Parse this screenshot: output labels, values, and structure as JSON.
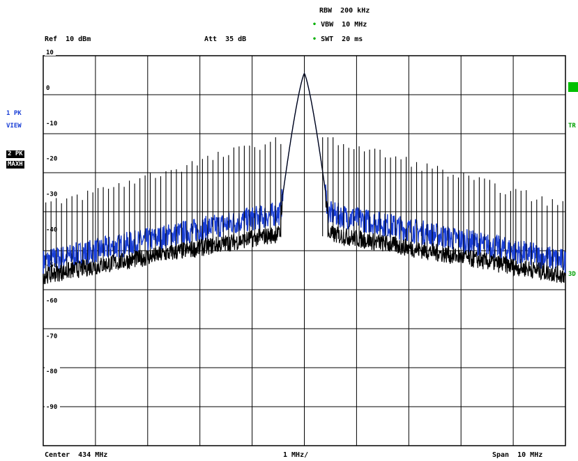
{
  "header": {
    "rbw": "RBW  200 kHz",
    "vbw": "VBW  10 MHz",
    "swt": "SWT  20 ms",
    "ref": "Ref  10 dBm",
    "att": "Att  35 dB"
  },
  "left_panel": {
    "trace1": "1 PK",
    "trace1_mode": "VIEW",
    "trace2": "2 PK",
    "trace2_mode": "MAXH"
  },
  "right_panel": {
    "tag1": "TR",
    "tag2": "3D"
  },
  "footer": {
    "center": "Center  434 MHz",
    "div": "1 MHz/",
    "span": "Span  10 MHz"
  },
  "colors": {
    "trace_view": "#1a3fd6",
    "trace_maxh": "#000000",
    "grid": "#000000",
    "accent_green": "#00c000"
  },
  "chart_data": {
    "type": "line",
    "xlim": [
      429,
      439
    ],
    "ylim": [
      -100,
      10
    ],
    "ytick_labels": [
      "10",
      "0",
      "-10",
      "-20",
      "-30",
      "-40",
      "-50",
      "-60",
      "-70",
      "-80",
      "-90"
    ],
    "yticks": [
      10,
      0,
      -10,
      -20,
      -30,
      -40,
      -50,
      -60,
      -70,
      -80,
      -90
    ],
    "grid": true,
    "peak": {
      "x": 434,
      "y": 5
    },
    "series": [
      {
        "name": "1 PK VIEW",
        "color": "#1a3fd6",
        "noise_floor_edge": -48,
        "shoulder": -32
      },
      {
        "name": "2 PK MAXH",
        "color": "#000000",
        "noise_floor_edge": -51,
        "spur_peak_edge": -34,
        "spur_peak_near": -13
      }
    ]
  }
}
